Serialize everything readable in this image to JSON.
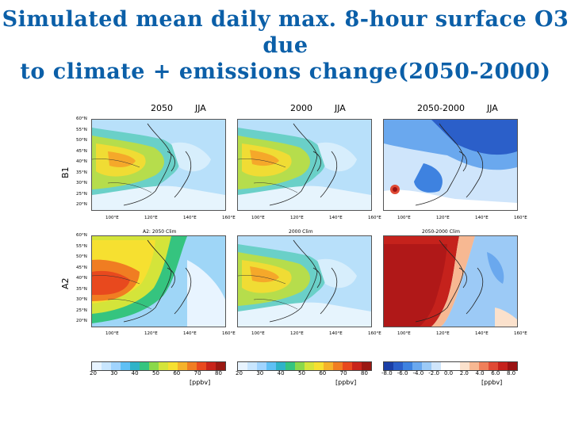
{
  "title": {
    "line1": "Simulated mean daily max. 8-hour surface O3 due",
    "line2": "to climate +  emissions change(2050-2000)"
  },
  "column_headers": [
    {
      "year": "2050",
      "season": "JJA"
    },
    {
      "year": "2000",
      "season": "JJA"
    },
    {
      "year": "2050-2000",
      "season": "JJA"
    }
  ],
  "row_labels": [
    "B1",
    "A2"
  ],
  "panel_subtitles": [
    "",
    "",
    "",
    "A2: 2050 Clim",
    "2000 Clim",
    "2050-2000 Clim"
  ],
  "lat_ticks": [
    "60°N",
    "55°N",
    "50°N",
    "45°N",
    "40°N",
    "35°N",
    "30°N",
    "25°N",
    "20°N"
  ],
  "lon_ticks": [
    "100°E",
    "120°E",
    "140°E",
    "160°E"
  ],
  "colorbars": [
    {
      "ticks": [
        "20",
        "30",
        "40",
        "50",
        "60",
        "70",
        "80"
      ],
      "unit": "[ppbv]",
      "colors": [
        "#e8f4ff",
        "#c8e6ff",
        "#a0d4ff",
        "#5fc0f5",
        "#2fb3c8",
        "#35c47f",
        "#8ad84a",
        "#d4e43a",
        "#f6e030",
        "#f5b22a",
        "#f07d22",
        "#e8491e",
        "#c8241a",
        "#9a1812"
      ]
    },
    {
      "ticks": [
        "20",
        "30",
        "40",
        "50",
        "60",
        "70",
        "80"
      ],
      "unit": "[ppbv]",
      "colors": [
        "#e8f4ff",
        "#c8e6ff",
        "#a0d4ff",
        "#5fc0f5",
        "#2fb3c8",
        "#35c47f",
        "#8ad84a",
        "#d4e43a",
        "#f6e030",
        "#f5b22a",
        "#f07d22",
        "#e8491e",
        "#c8241a",
        "#9a1812"
      ]
    },
    {
      "ticks": [
        "-8.0",
        "-6.0",
        "-4.0",
        "-2.0",
        "0.0",
        "2.0",
        "4.0",
        "6.0",
        "8.0"
      ],
      "unit": "[ppbv]",
      "colors": [
        "#1b3fa6",
        "#2b5fc9",
        "#3e82e0",
        "#6aa8ee",
        "#9ccaf6",
        "#cfe5fb",
        "#ffffff",
        "#ffffff",
        "#fbe1cc",
        "#f7b892",
        "#ef7f5a",
        "#e04a35",
        "#c5221c",
        "#9a1212"
      ]
    }
  ]
}
